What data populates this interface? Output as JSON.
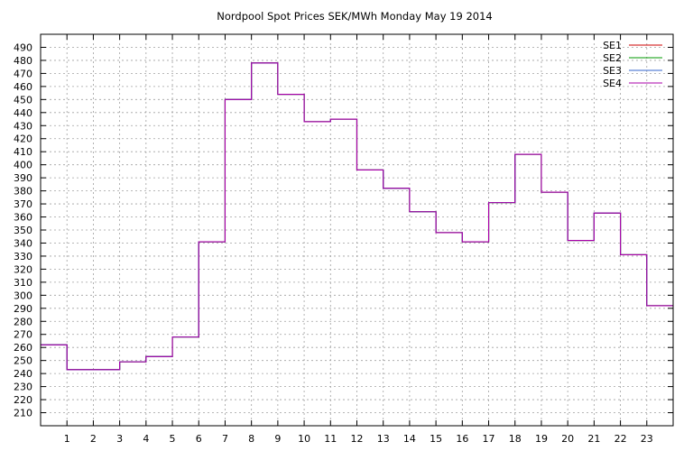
{
  "chart_data": {
    "type": "line",
    "step": true,
    "title": "Nordpool Spot Prices SEK/MWh Monday May 19 2014",
    "xlabel": "",
    "ylabel": "",
    "xlim": [
      0,
      24
    ],
    "ylim": [
      200,
      500
    ],
    "x_ticks": [
      1,
      2,
      3,
      4,
      5,
      6,
      7,
      8,
      9,
      10,
      11,
      12,
      13,
      14,
      15,
      16,
      17,
      18,
      19,
      20,
      21,
      22,
      23
    ],
    "y_ticks": [
      210,
      220,
      230,
      240,
      250,
      260,
      270,
      280,
      290,
      300,
      310,
      320,
      330,
      340,
      350,
      360,
      370,
      380,
      390,
      400,
      410,
      420,
      430,
      440,
      450,
      460,
      470,
      480,
      490
    ],
    "grid": true,
    "legend_position": "top-right",
    "x": [
      0,
      1,
      2,
      3,
      4,
      5,
      6,
      7,
      8,
      9,
      10,
      11,
      12,
      13,
      14,
      15,
      16,
      17,
      18,
      19,
      20,
      21,
      22,
      23
    ],
    "series": [
      {
        "name": "SE1",
        "color": "#cc0000",
        "values": [
          262,
          243,
          243,
          249,
          253,
          268,
          341,
          450,
          478,
          454,
          433,
          435,
          396,
          382,
          364,
          348,
          341,
          371,
          408,
          379,
          342,
          363,
          331,
          292
        ]
      },
      {
        "name": "SE2",
        "color": "#009900",
        "values": [
          262,
          243,
          243,
          249,
          253,
          268,
          341,
          450,
          478,
          454,
          433,
          435,
          396,
          382,
          364,
          348,
          341,
          371,
          408,
          379,
          342,
          363,
          331,
          292
        ]
      },
      {
        "name": "SE3",
        "color": "#3366cc",
        "values": [
          262,
          243,
          243,
          249,
          253,
          268,
          341,
          450,
          478,
          454,
          433,
          435,
          396,
          382,
          364,
          348,
          341,
          371,
          408,
          379,
          342,
          363,
          331,
          292
        ]
      },
      {
        "name": "SE4",
        "color": "#aa00aa",
        "values": [
          262,
          243,
          243,
          249,
          253,
          268,
          341,
          450,
          478,
          454,
          433,
          435,
          396,
          382,
          364,
          348,
          341,
          371,
          408,
          379,
          342,
          363,
          331,
          292
        ]
      }
    ]
  }
}
